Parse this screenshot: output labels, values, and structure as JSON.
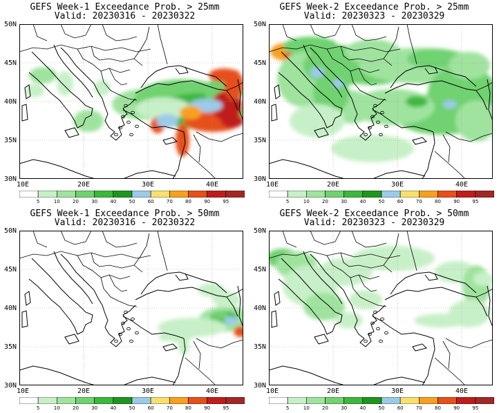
{
  "panels": [
    {
      "title": "GEFS Week-1 Exceedance Prob. > 25mm",
      "valid": "Valid: 20230316 - 20230322",
      "pattern": "w1_25"
    },
    {
      "title": "GEFS Week-2 Exceedance Prob. > 25mm",
      "valid": "Valid: 20230323 - 20230329",
      "pattern": "w2_25"
    },
    {
      "title": "GEFS Week-1 Exceedance Prob. > 50mm",
      "valid": "Valid: 20230316 - 20230322",
      "pattern": "w1_50"
    },
    {
      "title": "GEFS Week-2 Exceedance Prob. > 50mm",
      "valid": "Valid: 20230323 - 20230329",
      "pattern": "w2_50"
    }
  ],
  "lat_labels": [
    "50N",
    "45N",
    "40N",
    "35N",
    "30N"
  ],
  "lon_labels": [
    "10E",
    "20E",
    "30E",
    "40E"
  ],
  "colorbar": {
    "labels": [
      "5",
      "10",
      "20",
      "30",
      "40",
      "50",
      "60",
      "70",
      "80",
      "90",
      "95"
    ],
    "colors": [
      "#ffffff",
      "#c8f0c8",
      "#9fe39f",
      "#70d270",
      "#3cb83c",
      "#1e961e",
      "#9ccbe8",
      "#f8e070",
      "#f6a020",
      "#e6501a",
      "#c01c1c",
      "#a02828"
    ]
  },
  "map_extent": {
    "lon": [
      10,
      45
    ],
    "lat": [
      30,
      50
    ]
  }
}
